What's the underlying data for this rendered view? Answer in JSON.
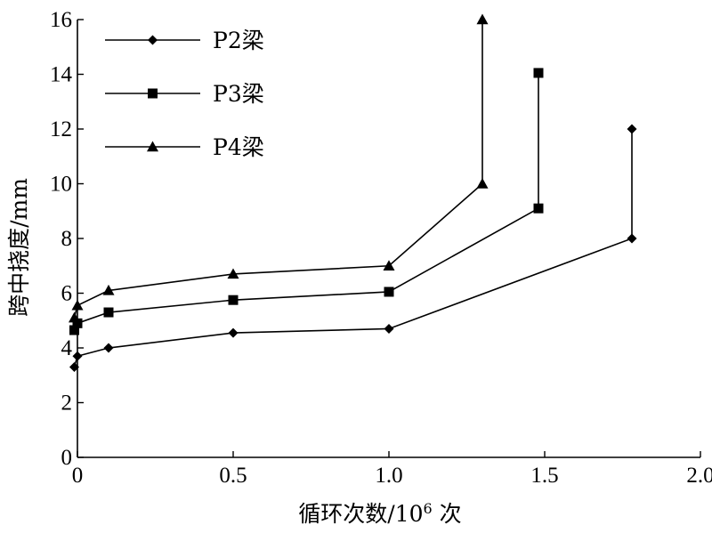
{
  "chart_data": {
    "type": "line",
    "xlabel": "循环次数/10",
    "xlabel_sup": "6",
    "xlabel_suffix": " 次",
    "ylabel": "跨中挠度/mm",
    "xlim": [
      0,
      2.0
    ],
    "ylim": [
      0,
      16
    ],
    "x_ticks": [
      0,
      0.5,
      1.0,
      1.5,
      2.0
    ],
    "x_tick_labels": [
      "0",
      "0.5",
      "1.0",
      "1.5",
      "2.0"
    ],
    "y_ticks": [
      0,
      2,
      4,
      6,
      8,
      10,
      12,
      14,
      16
    ],
    "y_tick_labels": [
      "0",
      "2",
      "4",
      "6",
      "8",
      "10",
      "12",
      "14",
      "16"
    ],
    "grid": false,
    "legend_position": "top-left",
    "series": [
      {
        "name": "P2梁",
        "marker": "diamond",
        "x": [
          -0.01,
          0.0,
          0.1,
          0.5,
          1.0,
          1.78,
          1.78
        ],
        "y": [
          3.3,
          3.7,
          4.0,
          4.55,
          4.7,
          8.0,
          12.0
        ]
      },
      {
        "name": "P3梁",
        "marker": "square",
        "x": [
          -0.01,
          0.0,
          0.1,
          0.5,
          1.0,
          1.48,
          1.48
        ],
        "y": [
          4.65,
          4.9,
          5.3,
          5.75,
          6.05,
          9.1,
          14.05
        ]
      },
      {
        "name": "P4梁",
        "marker": "triangle",
        "x": [
          -0.01,
          0.0,
          0.1,
          0.5,
          1.0,
          1.3,
          1.3
        ],
        "y": [
          5.1,
          5.55,
          6.1,
          6.7,
          7.0,
          10.0,
          16.0
        ]
      }
    ]
  }
}
